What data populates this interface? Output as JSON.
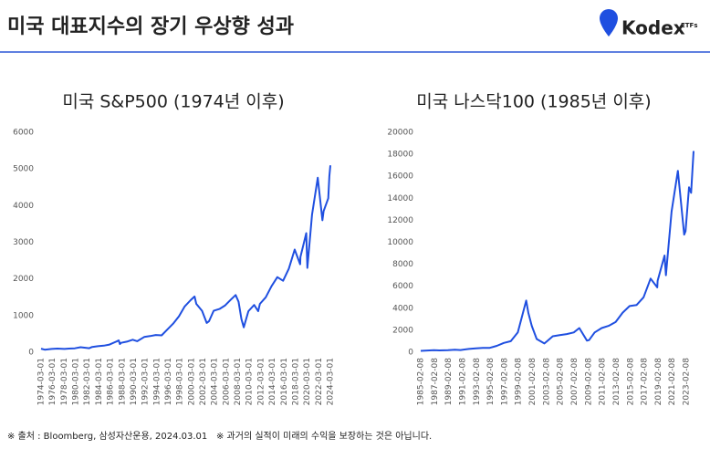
{
  "header": {
    "title": "미국 대표지수의 장기 우상향 성과",
    "logo": "Kodex",
    "logo_suffix": "ETFs"
  },
  "chart_data": [
    {
      "type": "line",
      "title": "미국 S&P500 (1974년 이후)",
      "color": "#1f4fe0",
      "x": [
        1974.17,
        1974.8,
        1976,
        1977,
        1978.2,
        1979,
        1980,
        1981,
        1982.5,
        1983,
        1984,
        1985,
        1986,
        1987.6,
        1987.8,
        1988,
        1989,
        1990,
        1990.8,
        1992,
        1993,
        1994,
        1995,
        1996,
        1997,
        1998,
        1999,
        2000,
        2000.7,
        2001,
        2002,
        2002.8,
        2003.2,
        2004,
        2005,
        2006,
        2007,
        2007.8,
        2008.3,
        2008.8,
        2009.2,
        2010,
        2011,
        2011.7,
        2012,
        2013,
        2014,
        2015,
        2016,
        2017,
        2018,
        2018.95,
        2019,
        2020,
        2020.2,
        2021,
        2022,
        2022.8,
        2023,
        2023.8,
        2024,
        2024.17
      ],
      "values": [
        97,
        70,
        90,
        100,
        89,
        99,
        107,
        136,
        110,
        145,
        164,
        180,
        210,
        320,
        225,
        257,
        290,
        340,
        300,
        415,
        440,
        470,
        460,
        620,
        780,
        980,
        1250,
        1420,
        1520,
        1320,
        1130,
        800,
        850,
        1130,
        1180,
        1280,
        1440,
        1560,
        1380,
        900,
        680,
        1120,
        1290,
        1120,
        1320,
        1500,
        1800,
        2050,
        1950,
        2280,
        2800,
        2400,
        2600,
        3250,
        2300,
        3750,
        4760,
        3600,
        3850,
        4200,
        4800,
        5100
      ],
      "xlim": [
        1974.17,
        2024.17
      ],
      "ylim": [
        0,
        6000
      ],
      "yticks": [
        0,
        1000,
        2000,
        3000,
        4000,
        5000,
        6000
      ],
      "xticks": [
        {
          "value": 1974.17,
          "label": "1974-03-01"
        },
        {
          "value": 1976.17,
          "label": "1976-03-01"
        },
        {
          "value": 1978.17,
          "label": "1978-03-01"
        },
        {
          "value": 1980.17,
          "label": "1980-03-01"
        },
        {
          "value": 1982.17,
          "label": "1982-03-01"
        },
        {
          "value": 1984.17,
          "label": "1984-03-01"
        },
        {
          "value": 1986.17,
          "label": "1986-03-01"
        },
        {
          "value": 1988.17,
          "label": "1988-03-01"
        },
        {
          "value": 1990.17,
          "label": "1990-03-01"
        },
        {
          "value": 1992.17,
          "label": "1992-03-01"
        },
        {
          "value": 1994.17,
          "label": "1994-03-01"
        },
        {
          "value": 1996.17,
          "label": "1996-03-01"
        },
        {
          "value": 1998.17,
          "label": "1998-03-01"
        },
        {
          "value": 2000.17,
          "label": "2000-03-01"
        },
        {
          "value": 2002.17,
          "label": "2002-03-01"
        },
        {
          "value": 2004.17,
          "label": "2004-03-01"
        },
        {
          "value": 2006.17,
          "label": "2006-03-01"
        },
        {
          "value": 2008.17,
          "label": "2008-03-01"
        },
        {
          "value": 2010.17,
          "label": "2010-03-01"
        },
        {
          "value": 2012.17,
          "label": "2012-03-01"
        },
        {
          "value": 2014.17,
          "label": "2014-03-01"
        },
        {
          "value": 2016.17,
          "label": "2016-03-01"
        },
        {
          "value": 2018.17,
          "label": "2018-03-01"
        },
        {
          "value": 2020.17,
          "label": "2020-03-01"
        },
        {
          "value": 2022.17,
          "label": "2022-03-01"
        },
        {
          "value": 2024.17,
          "label": "2024-03-01"
        }
      ]
    },
    {
      "type": "line",
      "title": "미국 나스닥100 (1985년 이후)",
      "color": "#1f4fe0",
      "x": [
        1985.11,
        1987,
        1987.8,
        1989,
        1990,
        1990.8,
        1992,
        1993,
        1994,
        1995,
        1996,
        1997,
        1998,
        1999,
        2000.2,
        2000.5,
        2001,
        2001.7,
        2002.8,
        2003.2,
        2004,
        2005,
        2006,
        2007,
        2007.8,
        2008.9,
        2009.2,
        2010,
        2011,
        2012,
        2013,
        2014,
        2015,
        2016,
        2017,
        2018,
        2018.95,
        2019,
        2020,
        2020.2,
        2021,
        2021.9,
        2022.8,
        2023,
        2023.5,
        2023.8,
        2024.15
      ],
      "values": [
        125,
        180,
        170,
        180,
        220,
        200,
        300,
        350,
        400,
        400,
        580,
        850,
        1000,
        1800,
        4700,
        3600,
        2400,
        1200,
        800,
        1000,
        1450,
        1550,
        1650,
        1800,
        2200,
        1050,
        1100,
        1800,
        2200,
        2400,
        2750,
        3600,
        4200,
        4300,
        5000,
        6700,
        5900,
        6500,
        8800,
        7000,
        12800,
        16500,
        10700,
        11000,
        15000,
        14500,
        18300
      ],
      "xlim": [
        1985.11,
        2024.15
      ],
      "ylim": [
        0,
        20000
      ],
      "yticks": [
        0,
        2000,
        4000,
        6000,
        8000,
        10000,
        12000,
        14000,
        16000,
        18000,
        20000
      ],
      "xticks": [
        {
          "value": 1985.11,
          "label": "1985-02-08"
        },
        {
          "value": 1987.11,
          "label": "1987-02-08"
        },
        {
          "value": 1989.11,
          "label": "1989-02-08"
        },
        {
          "value": 1991.11,
          "label": "1991-02-08"
        },
        {
          "value": 1993.11,
          "label": "1993-02-08"
        },
        {
          "value": 1995.11,
          "label": "1995-02-08"
        },
        {
          "value": 1997.11,
          "label": "1997-02-08"
        },
        {
          "value": 1999.11,
          "label": "1999-02-08"
        },
        {
          "value": 2001.11,
          "label": "2001-02-08"
        },
        {
          "value": 2003.11,
          "label": "2003-02-08"
        },
        {
          "value": 2005.11,
          "label": "2005-02-08"
        },
        {
          "value": 2007.11,
          "label": "2007-02-08"
        },
        {
          "value": 2009.11,
          "label": "2009-02-08"
        },
        {
          "value": 2011.11,
          "label": "2011-02-08"
        },
        {
          "value": 2013.11,
          "label": "2013-02-08"
        },
        {
          "value": 2015.11,
          "label": "2015-02-08"
        },
        {
          "value": 2017.11,
          "label": "2017-02-08"
        },
        {
          "value": 2019.11,
          "label": "2019-02-08"
        },
        {
          "value": 2021.11,
          "label": "2021-02-08"
        },
        {
          "value": 2023.11,
          "label": "2023-02-08"
        }
      ]
    }
  ],
  "footnotes": [
    "※ 출처 : Bloomberg, 삼성자산운용, 2024.03.01",
    "※  과거의 실적이 미래의 수익을 보장하는 것은 아닙니다."
  ]
}
